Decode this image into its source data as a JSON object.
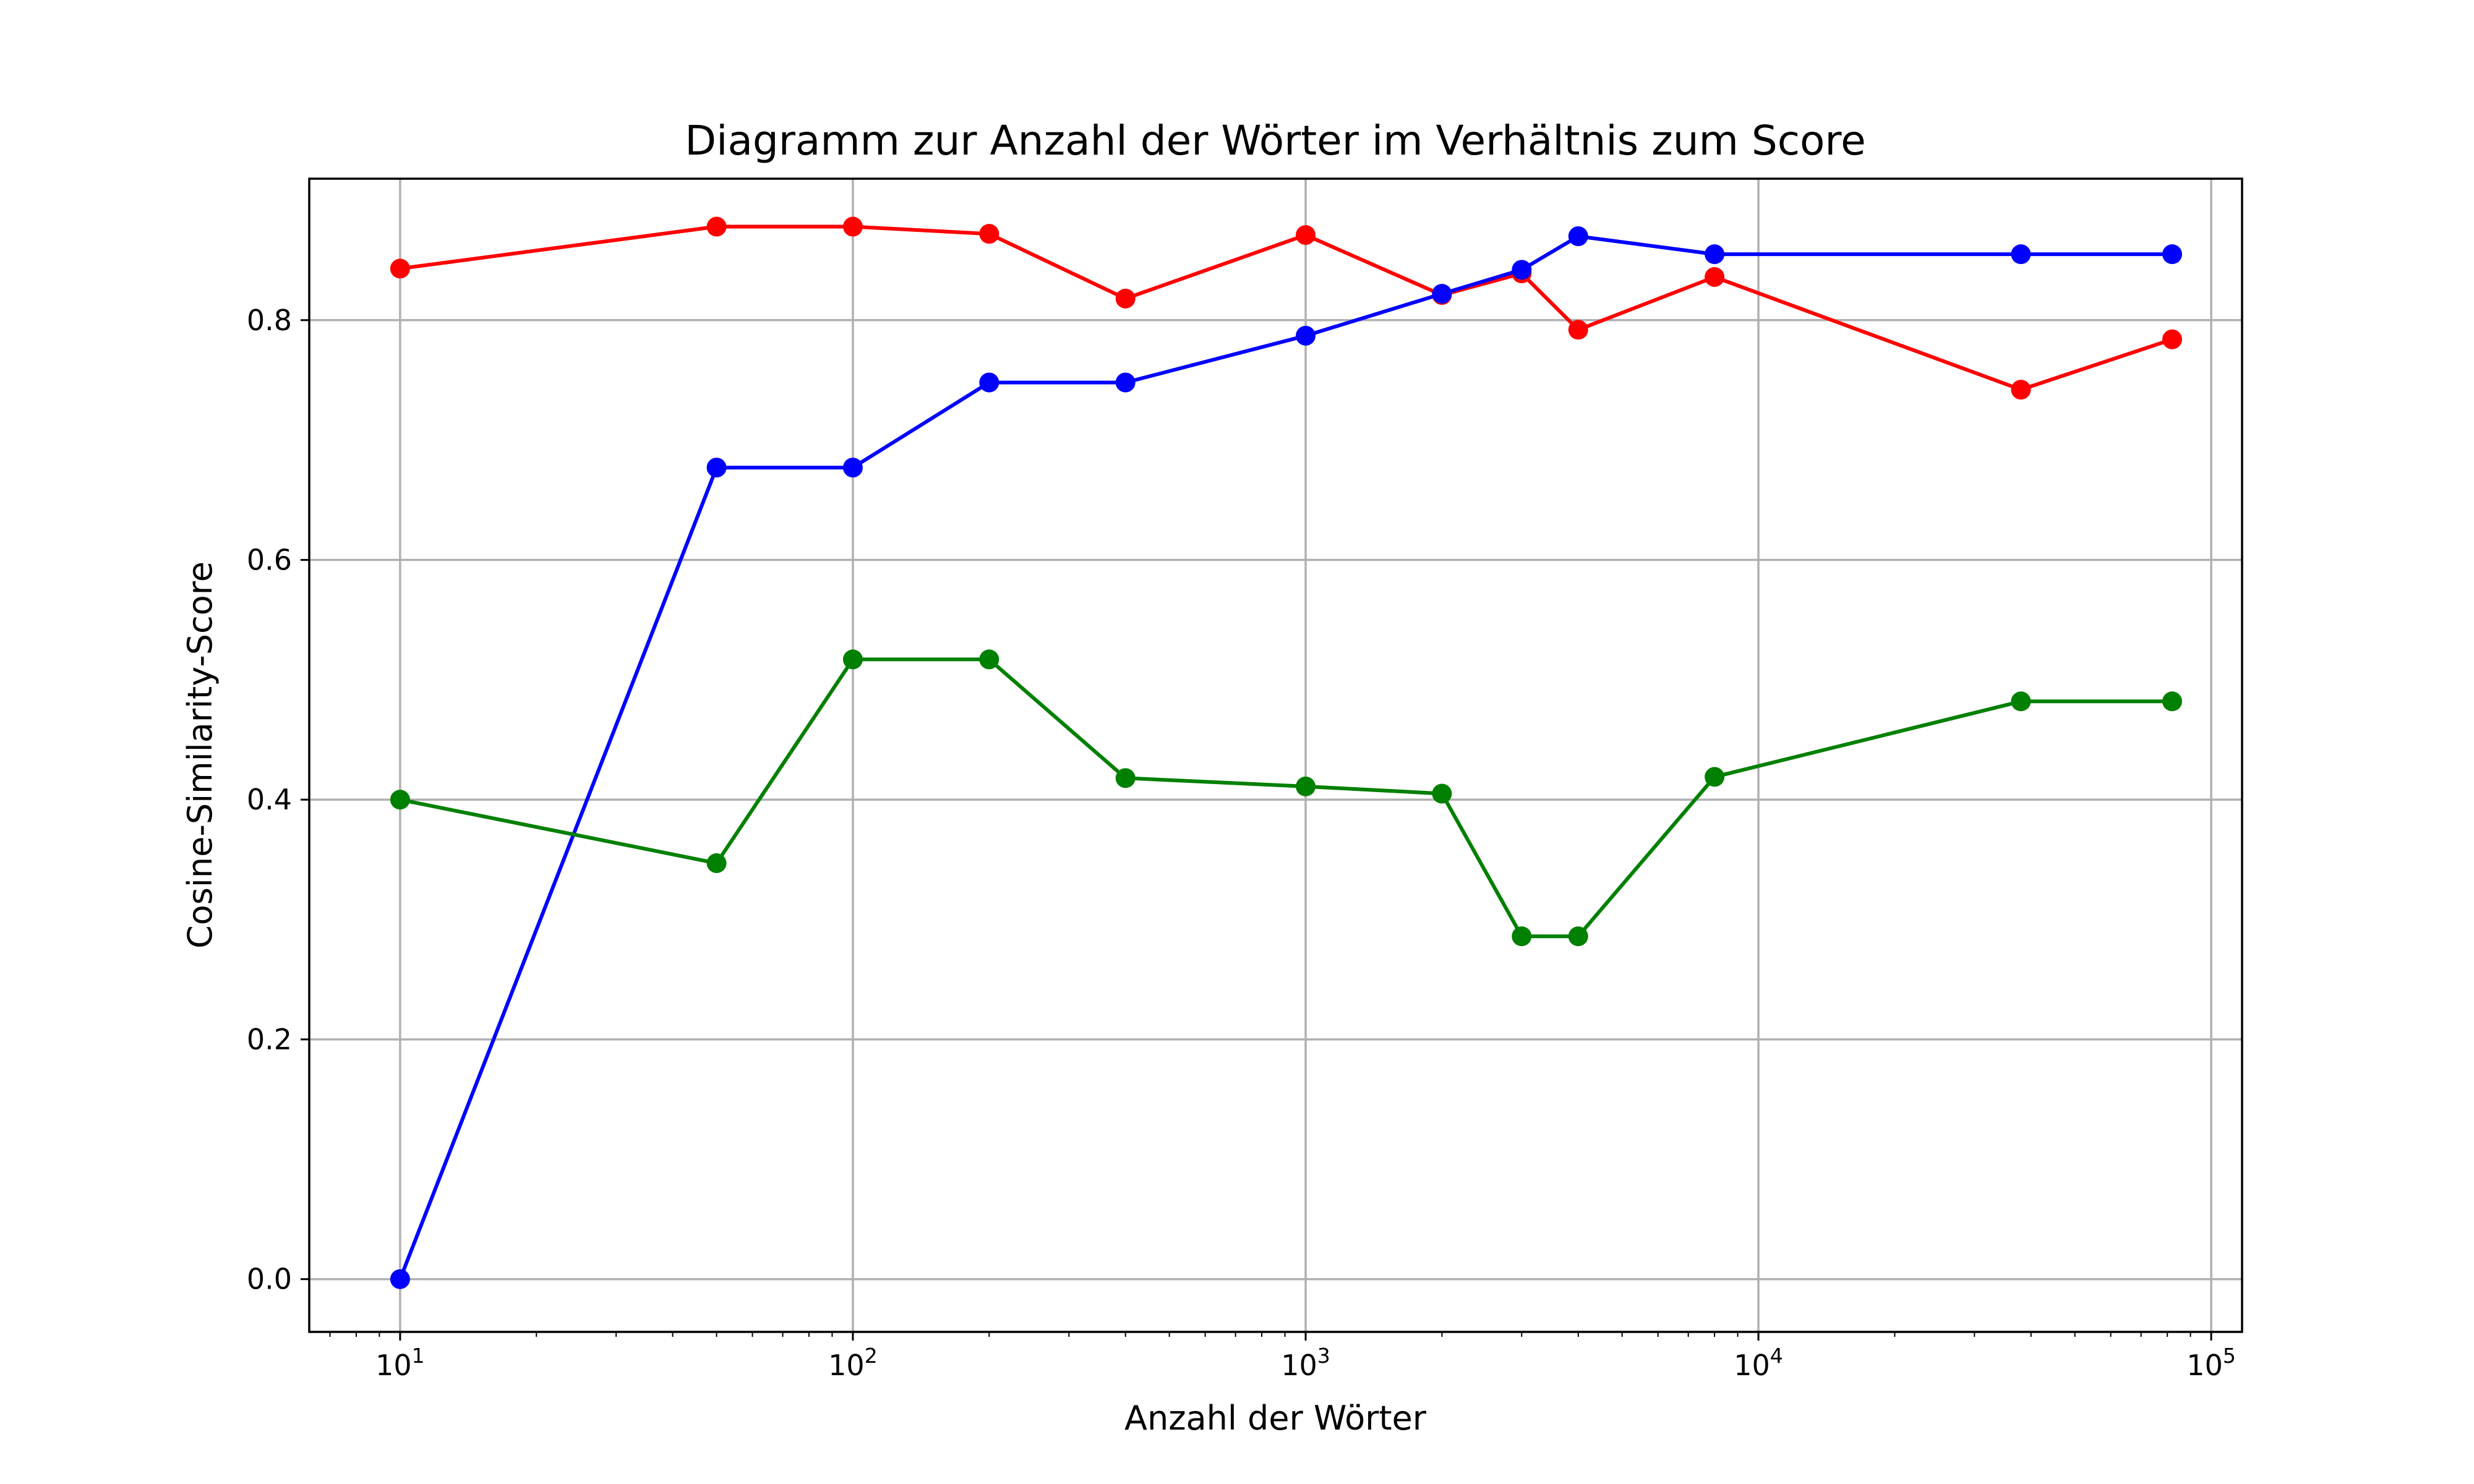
{
  "chart_data": {
    "type": "line",
    "title": "Diagramm zur Anzahl der Wörter im Verhältnis zum Score",
    "xlabel": "Anzahl der Wörter",
    "ylabel": "Cosine-Similarity-Score",
    "x_scale": "log",
    "xlim": [
      6.3,
      117000
    ],
    "ylim": [
      -0.044,
      0.918
    ],
    "grid": true,
    "x_ticks": [
      {
        "value": 10,
        "mantissa": "10",
        "exp": "1"
      },
      {
        "value": 100,
        "mantissa": "10",
        "exp": "2"
      },
      {
        "value": 1000,
        "mantissa": "10",
        "exp": "3"
      },
      {
        "value": 10000,
        "mantissa": "10",
        "exp": "4"
      },
      {
        "value": 100000,
        "mantissa": "10",
        "exp": "5"
      }
    ],
    "y_ticks": [
      {
        "value": 0.0,
        "label": "0.0"
      },
      {
        "value": 0.2,
        "label": "0.2"
      },
      {
        "value": 0.4,
        "label": "0.4"
      },
      {
        "value": 0.6,
        "label": "0.6"
      },
      {
        "value": 0.8,
        "label": "0.8"
      }
    ],
    "x": [
      10,
      50,
      100,
      200,
      400,
      1000,
      2000,
      3000,
      4000,
      8000,
      38000,
      82000
    ],
    "series": [
      {
        "color": "#ff0000",
        "values": [
          0.843,
          0.878,
          0.878,
          0.872,
          0.818,
          0.871,
          0.821,
          0.839,
          0.792,
          0.836,
          0.742,
          0.784
        ]
      },
      {
        "color": "#0000ff",
        "values": [
          0.0,
          0.677,
          0.677,
          0.748,
          0.748,
          0.787,
          0.822,
          0.842,
          0.87,
          0.855,
          0.855,
          0.855
        ]
      },
      {
        "color": "#008000",
        "values": [
          0.4,
          0.347,
          0.517,
          0.517,
          0.418,
          0.411,
          0.405,
          0.286,
          0.286,
          0.419,
          0.482,
          0.482
        ]
      }
    ]
  }
}
